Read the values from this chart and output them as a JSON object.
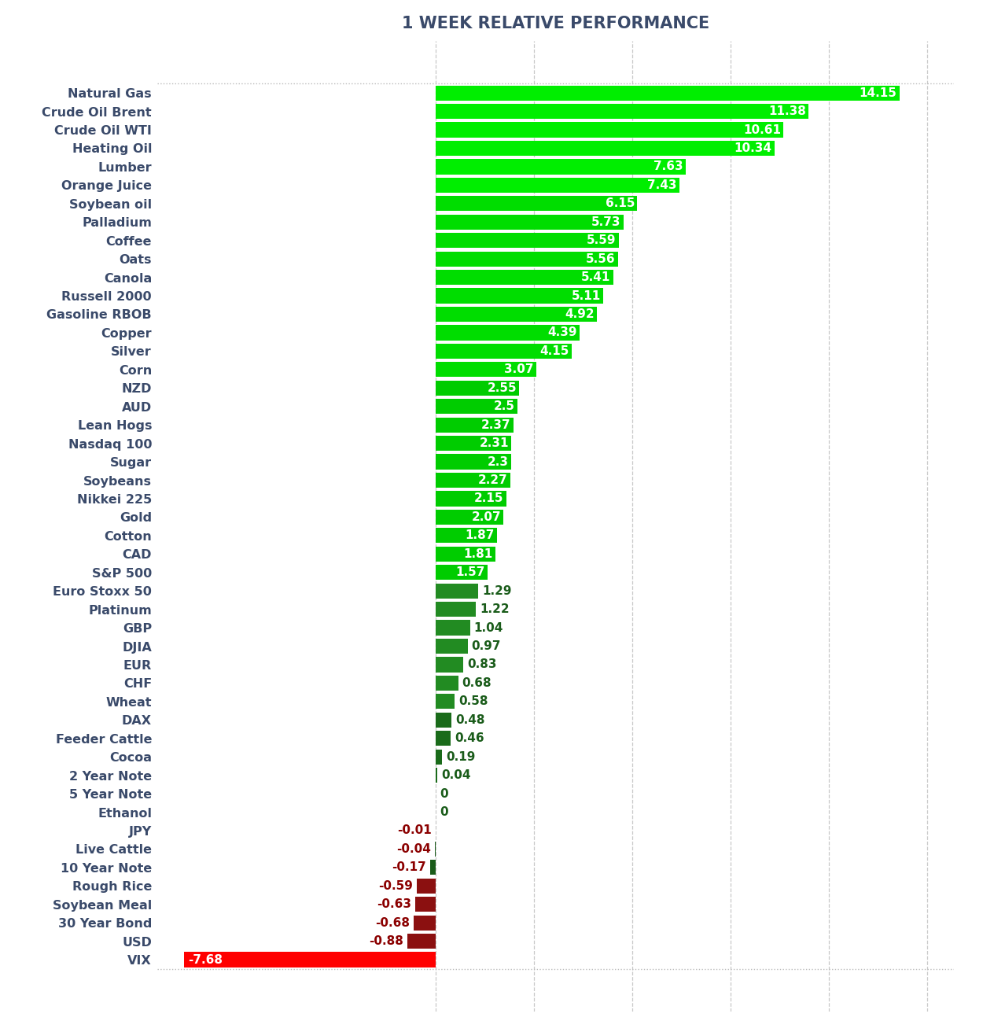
{
  "title": "1 WEEK RELATIVE PERFORMANCE",
  "categories": [
    "Natural Gas",
    "Crude Oil Brent",
    "Crude Oil WTI",
    "Heating Oil",
    "Lumber",
    "Orange Juice",
    "Soybean oil",
    "Palladium",
    "Coffee",
    "Oats",
    "Canola",
    "Russell 2000",
    "Gasoline RBOB",
    "Copper",
    "Silver",
    "Corn",
    "NZD",
    "AUD",
    "Lean Hogs",
    "Nasdaq 100",
    "Sugar",
    "Soybeans",
    "Nikkei 225",
    "Gold",
    "Cotton",
    "CAD",
    "S&P 500",
    "Euro Stoxx 50",
    "Platinum",
    "GBP",
    "DJIA",
    "EUR",
    "CHF",
    "Wheat",
    "DAX",
    "Feeder Cattle",
    "Cocoa",
    "2 Year Note",
    "5 Year Note",
    "Ethanol",
    "JPY",
    "Live Cattle",
    "10 Year Note",
    "Rough Rice",
    "Soybean Meal",
    "30 Year Bond",
    "USD",
    "VIX"
  ],
  "values": [
    14.15,
    11.38,
    10.61,
    10.34,
    7.63,
    7.43,
    6.15,
    5.73,
    5.59,
    5.56,
    5.41,
    5.11,
    4.92,
    4.39,
    4.15,
    3.07,
    2.55,
    2.5,
    2.37,
    2.31,
    2.3,
    2.27,
    2.15,
    2.07,
    1.87,
    1.81,
    1.57,
    1.29,
    1.22,
    1.04,
    0.97,
    0.83,
    0.68,
    0.58,
    0.48,
    0.46,
    0.19,
    0.04,
    0.0,
    0.0,
    -0.01,
    -0.04,
    -0.17,
    -0.59,
    -0.63,
    -0.68,
    -0.88,
    -7.68
  ],
  "color_bright_green": "#00EE00",
  "color_medium_green": "#00CC00",
  "color_dark_green": "#1A7A1A",
  "color_darker_green": "#1A5C1A",
  "color_darkest_green": "#1A4A1A",
  "color_dark_red": "#8B1A1A",
  "color_bright_red": "#FF0000",
  "title_color": "#3A4A6A",
  "label_color": "#3A4A6A",
  "bg_color": "#FFFFFF",
  "grid_color": "#BBBBBB",
  "xlim_min": -8.5,
  "xlim_max": 15.8,
  "bar_height": 0.82
}
